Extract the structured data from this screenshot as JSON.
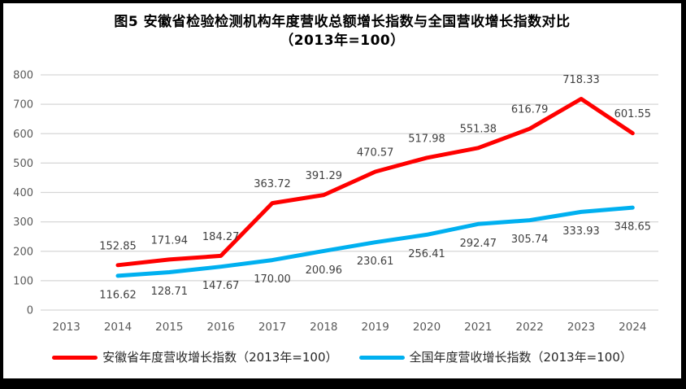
{
  "figure": {
    "title_line1": "图5  安徽省检验检测机构年度营收总额增长指数与全国营收增长指数对比",
    "title_line2": "（2013年=100）"
  },
  "legend": [
    {
      "label": "安徽省年度营收增长指数（2013年=100）",
      "color": "#FF0000"
    },
    {
      "label": "全国年度营收增长指数（2013年=100）",
      "color": "#00B0F0"
    }
  ],
  "chart_data": {
    "type": "line",
    "title": "图5 安徽省检验检测机构年度营收总额增长指数与全国营收增长指数对比（2013年=100）",
    "categories": [
      "2013",
      "2014",
      "2015",
      "2016",
      "2017",
      "2018",
      "2019",
      "2020",
      "2021",
      "2022",
      "2023",
      "2024"
    ],
    "series": [
      {
        "name": "安徽省年度营收增长指数（2013年=100）",
        "color": "#FF0000",
        "label_position": "above",
        "values": [
          null,
          152.85,
          171.94,
          184.27,
          363.72,
          391.29,
          470.57,
          517.98,
          551.38,
          616.79,
          718.33,
          601.55
        ]
      },
      {
        "name": "全国年度营收增长指数（2013年=100）",
        "color": "#00B0F0",
        "label_position": "below",
        "values": [
          null,
          116.62,
          128.71,
          147.67,
          170.0,
          200.96,
          230.61,
          256.41,
          292.47,
          305.74,
          333.93,
          348.65
        ]
      }
    ],
    "xlabel": "",
    "ylabel": "",
    "ylim": [
      0,
      800
    ],
    "ytick_step": 100,
    "grid": true,
    "legend_position": "bottom",
    "colors": {
      "gridline": "#D6D6D6",
      "axis_text": "#595959",
      "data_label_text": "#404040"
    }
  }
}
